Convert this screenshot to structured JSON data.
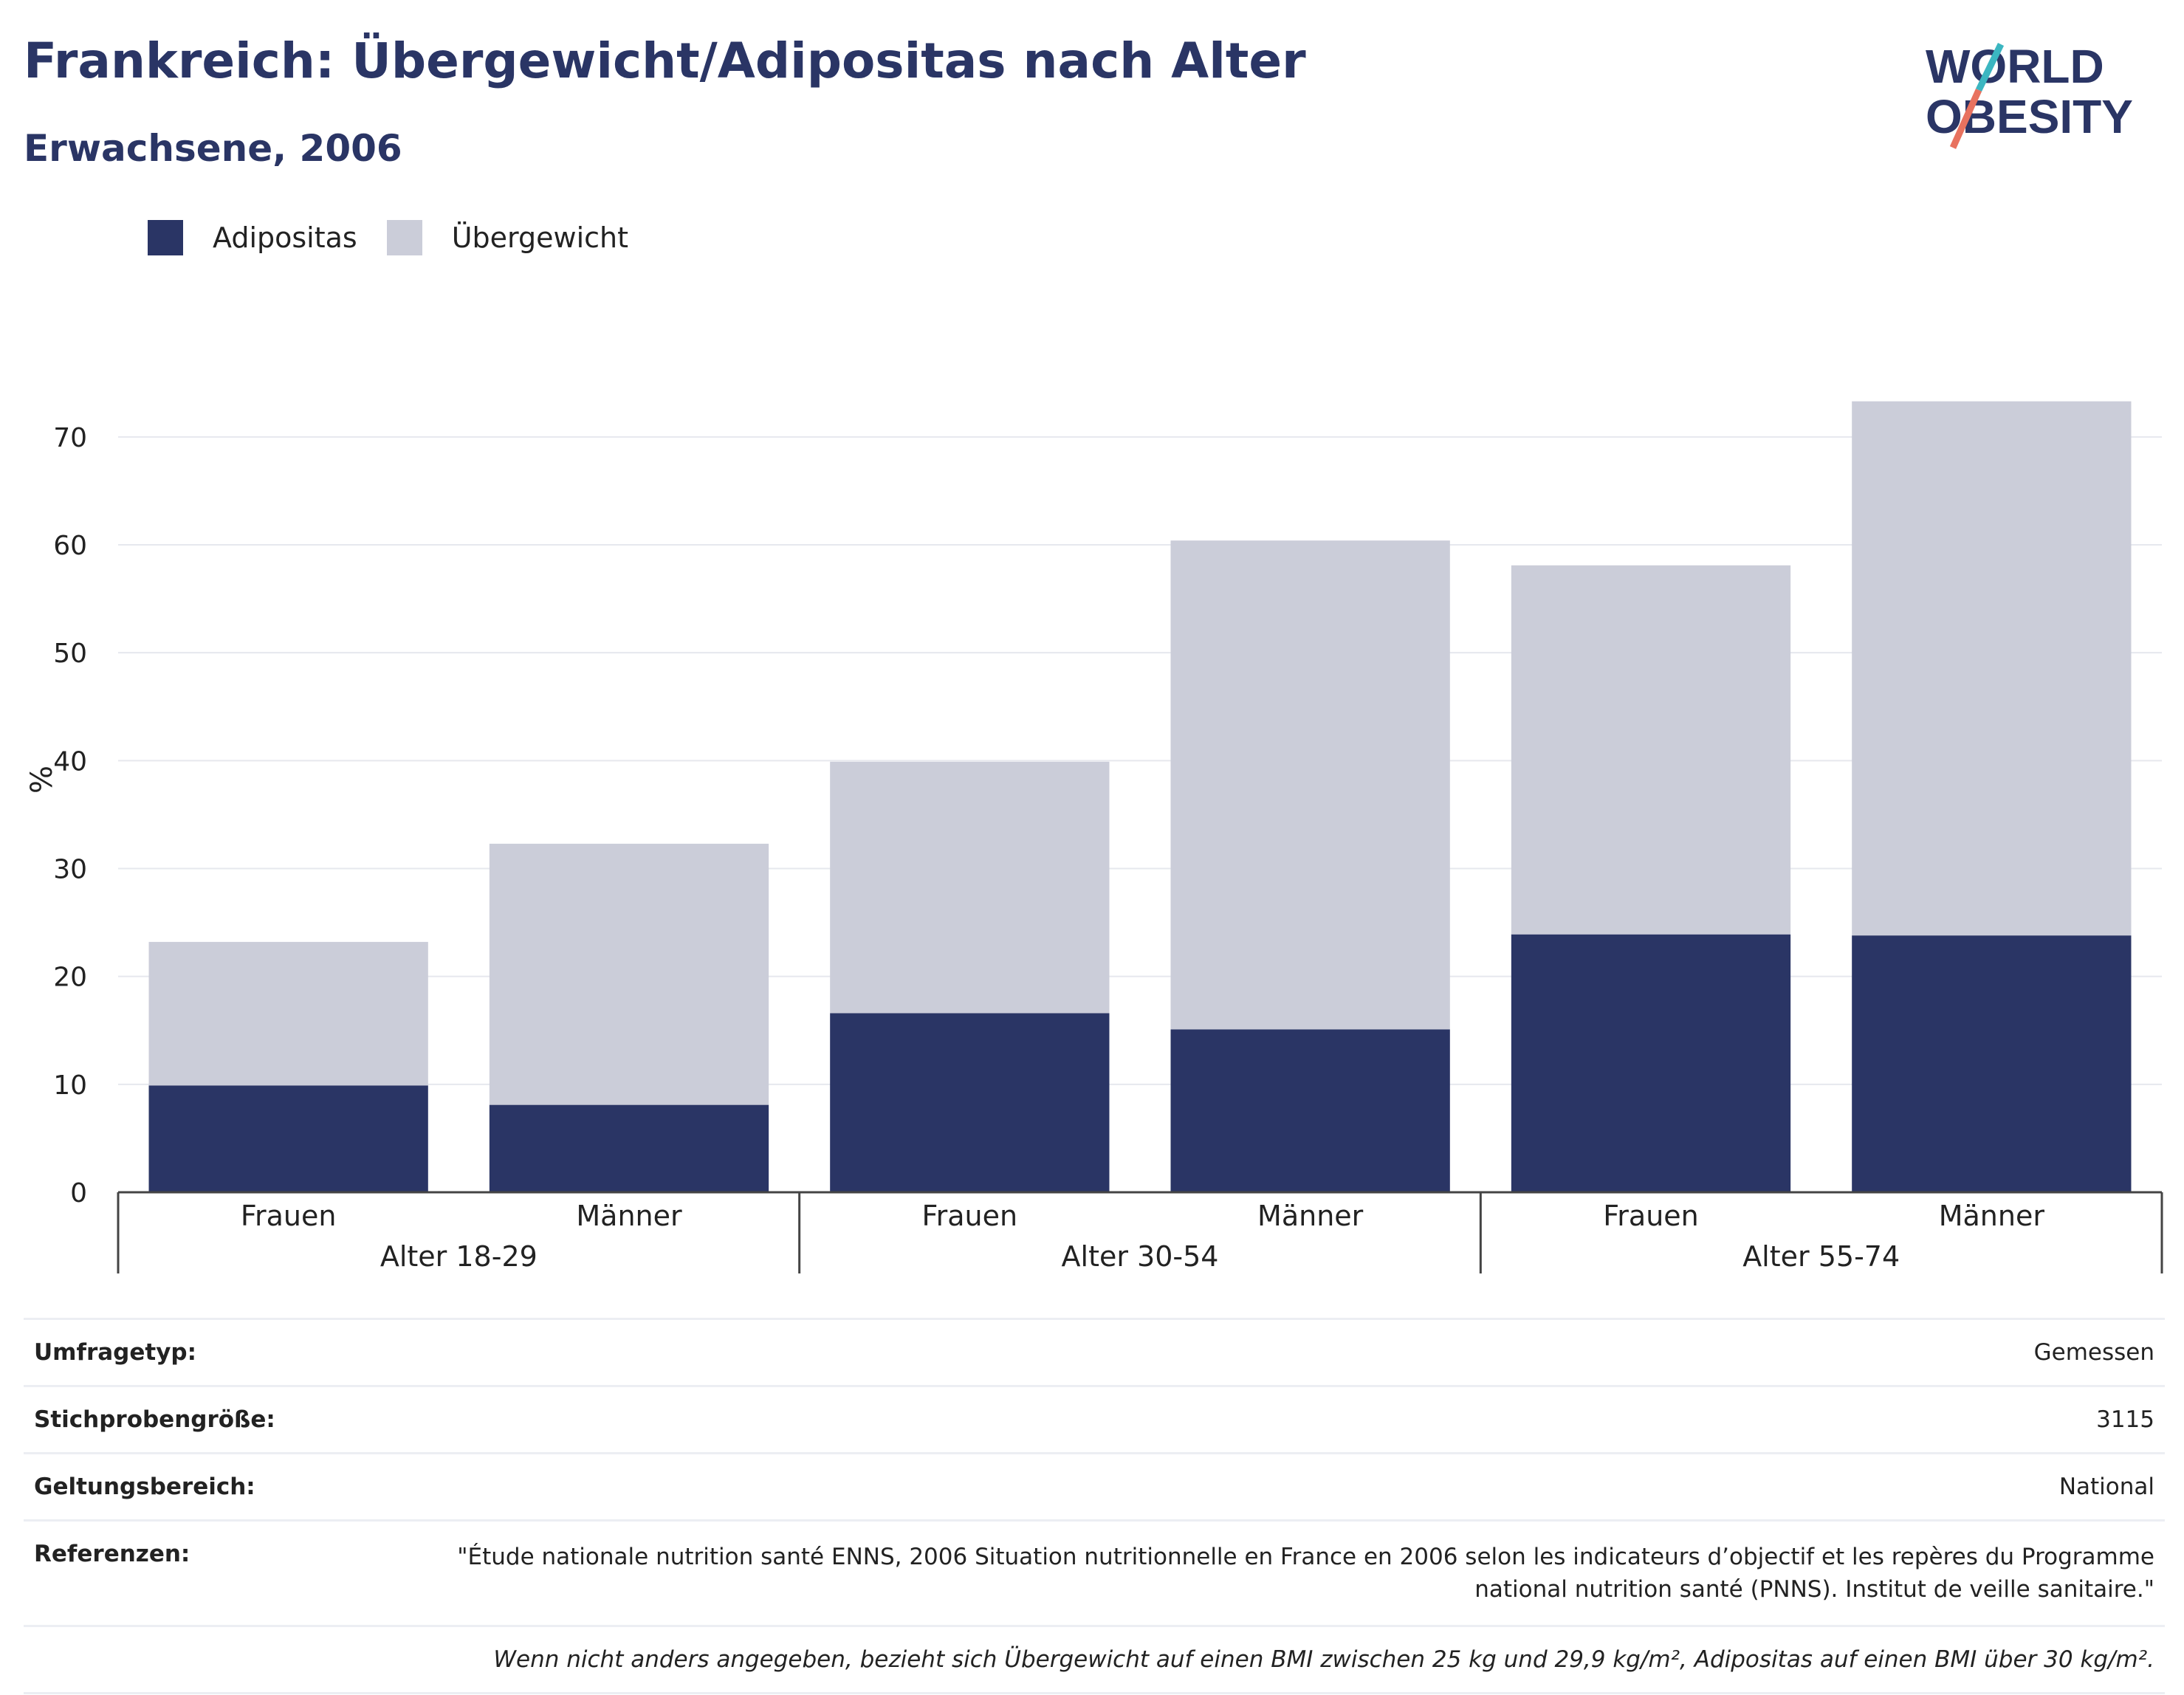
{
  "title": "Frankreich: Übergewicht/Adipositas nach Alter",
  "subtitle": "Erwachsene, 2006",
  "logo": {
    "line1": "WORLD",
    "line2": "OBESITY",
    "accent_teal": "#3bb6c1",
    "accent_coral": "#e8725f"
  },
  "colors": {
    "adipositas": "#2a3565",
    "uebergewicht": "#cbcdd9",
    "grid": "#e6e8ee",
    "axis": "#444444"
  },
  "chart_data": {
    "type": "bar",
    "stacked": true,
    "ylabel": "%",
    "ylim": [
      0,
      73
    ],
    "yticks": [
      0,
      10,
      20,
      30,
      40,
      50,
      60,
      70
    ],
    "grid": true,
    "legend_position": "top-left",
    "categories": [
      "Frauen",
      "Männer",
      "Frauen",
      "Männer",
      "Frauen",
      "Männer"
    ],
    "groups": [
      {
        "label": "Alter 18-29",
        "categories": [
          "Frauen",
          "Männer"
        ]
      },
      {
        "label": "Alter 30-54",
        "categories": [
          "Frauen",
          "Männer"
        ]
      },
      {
        "label": "Alter 55-74",
        "categories": [
          "Frauen",
          "Männer"
        ]
      }
    ],
    "series": [
      {
        "name": "Adipositas",
        "values": [
          9.9,
          8.1,
          16.6,
          15.1,
          23.9,
          23.8
        ]
      },
      {
        "name": "Übergewicht",
        "values": [
          13.3,
          24.2,
          23.3,
          45.3,
          34.2,
          49.5
        ]
      }
    ]
  },
  "info": {
    "survey_type": {
      "label": "Umfragetyp:",
      "value": "Gemessen"
    },
    "sample_size": {
      "label": "Stichprobengröße:",
      "value": "3115"
    },
    "scope": {
      "label": "Geltungsbereich:",
      "value": "National"
    },
    "references": {
      "label": "Referenzen:",
      "value": "\"Étude nationale nutrition santé ENNS, 2006 Situation nutritionnelle en France en 2006 selon les indicateurs d’objectif et les repères du Programme national nutrition santé (PNNS). Institut de veille sanitaire.\""
    },
    "note": "Wenn nicht anders angegeben, bezieht sich Übergewicht auf einen BMI zwischen 25 kg und 29,9 kg/m², Adipositas auf einen BMI über 30 kg/m²."
  }
}
